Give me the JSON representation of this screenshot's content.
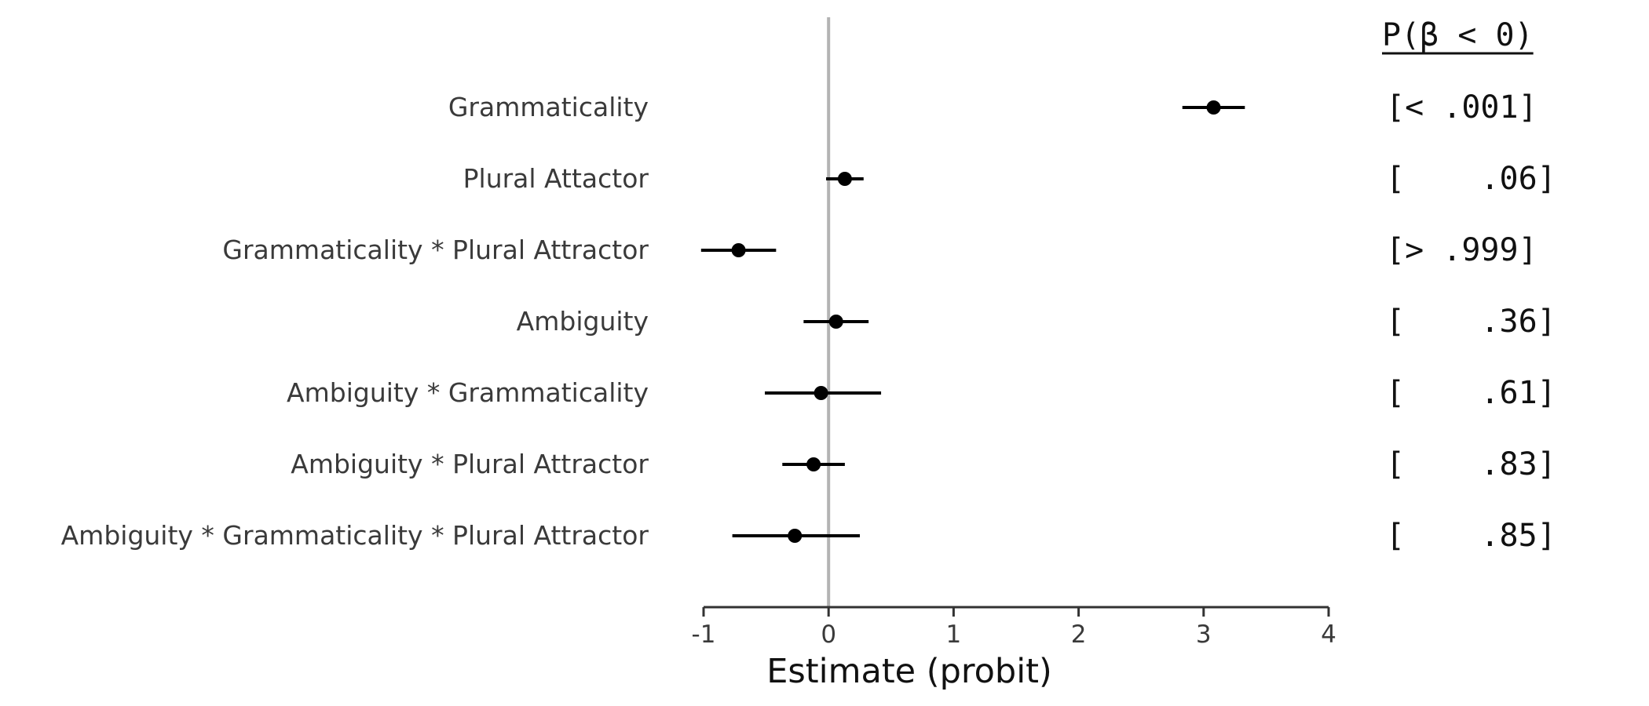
{
  "chart_data": {
    "type": "scatter",
    "xlabel": "Estimate (probit)",
    "xlim": [
      -1,
      4
    ],
    "x_ticks": [
      -1,
      0,
      1,
      2,
      3,
      4
    ],
    "x_tick_labels": [
      "-1",
      "0",
      "1",
      "2",
      "3",
      "4"
    ],
    "reference_line": 0,
    "grid": false,
    "prob_header": "P(β < 0)",
    "rows": [
      {
        "label": "Grammaticality",
        "estimate": 3.08,
        "lower": 2.83,
        "upper": 3.33,
        "prob": "[< .001]"
      },
      {
        "label": "Plural Attactor",
        "estimate": 0.13,
        "lower": -0.02,
        "upper": 0.28,
        "prob": "[    .06]"
      },
      {
        "label": "Grammaticality * Plural Attractor",
        "estimate": -0.72,
        "lower": -1.02,
        "upper": -0.42,
        "prob": "[> .999]"
      },
      {
        "label": "Ambiguity",
        "estimate": 0.06,
        "lower": -0.2,
        "upper": 0.32,
        "prob": "[    .36]"
      },
      {
        "label": "Ambiguity * Grammaticality",
        "estimate": -0.06,
        "lower": -0.51,
        "upper": 0.42,
        "prob": "[    .61]"
      },
      {
        "label": "Ambiguity * Plural Attractor",
        "estimate": -0.12,
        "lower": -0.37,
        "upper": 0.13,
        "prob": "[    .83]"
      },
      {
        "label": "Ambiguity * Grammaticality * Plural Attractor",
        "estimate": -0.27,
        "lower": -0.77,
        "upper": 0.25,
        "prob": "[    .85]"
      }
    ],
    "colors": {
      "point": "#000000",
      "reference_line": "#b3b3b3",
      "axis": "#333333"
    }
  }
}
